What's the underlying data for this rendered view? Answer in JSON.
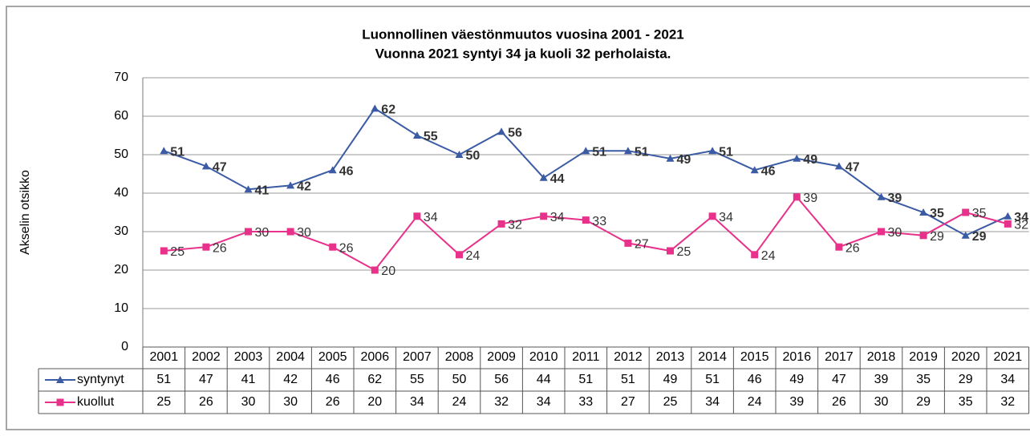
{
  "chart_data": {
    "type": "line",
    "title": "Luonnollinen väestönmuutos vuosina 2001 - 2021",
    "subtitle": "Vuonna 2021 syntyi 34 ja kuoli 32 perholaista.",
    "y_label": "Akselin otsikko",
    "categories": [
      "2001",
      "2002",
      "2003",
      "2004",
      "2005",
      "2006",
      "2007",
      "2008",
      "2009",
      "2010",
      "2011",
      "2012",
      "2013",
      "2014",
      "2015",
      "2016",
      "2017",
      "2018",
      "2019",
      "2020",
      "2021"
    ],
    "series": [
      {
        "name": "syntynyt",
        "color": "#3b5ba5",
        "marker": "triangle",
        "values": [
          51,
          47,
          41,
          42,
          46,
          62,
          55,
          50,
          56,
          44,
          51,
          51,
          49,
          51,
          46,
          49,
          47,
          39,
          35,
          29,
          34
        ]
      },
      {
        "name": "kuollut",
        "color": "#e8318a",
        "marker": "square",
        "values": [
          25,
          26,
          30,
          30,
          26,
          20,
          34,
          24,
          32,
          34,
          33,
          27,
          25,
          34,
          24,
          39,
          26,
          30,
          29,
          35,
          32
        ]
      }
    ],
    "ylim": [
      0,
      70
    ],
    "yticks": [
      0,
      10,
      20,
      30,
      40,
      50,
      60,
      70
    ],
    "grid": true
  }
}
